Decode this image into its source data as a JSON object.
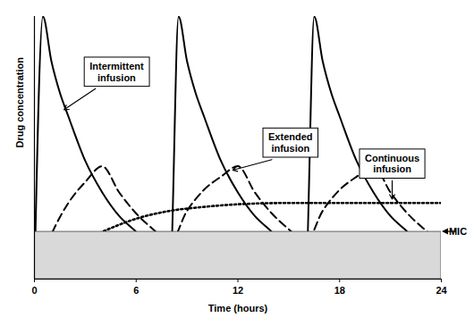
{
  "chart_data": {
    "type": "line",
    "x_label": "Time (hours)",
    "y_label": "Drug concentration",
    "xlim": [
      0,
      24
    ],
    "xticks": [
      0,
      6,
      12,
      18,
      24
    ],
    "ylim": [
      0,
      100
    ],
    "yticks": [],
    "tick_labels": "x",
    "series": [
      {
        "name": "Intermittent\ninfusion",
        "type": "line",
        "color": "#000000",
        "line_style": "solid",
        "x": [
          0,
          0.5,
          1,
          1.5,
          2,
          3,
          4,
          5,
          6,
          7,
          8,
          8.5,
          9,
          9.5,
          10,
          11,
          12,
          13,
          14,
          15,
          16,
          16.5,
          17,
          17.5,
          18,
          19,
          20,
          21,
          22,
          23,
          24
        ],
        "values": [
          0,
          100,
          83,
          71,
          62,
          45,
          33,
          24,
          18,
          11,
          3,
          100,
          83,
          71,
          62,
          45,
          33,
          24,
          18,
          11,
          3,
          100,
          83,
          71,
          62,
          45,
          33,
          24,
          18,
          11,
          3
        ]
      },
      {
        "name": "Extended\ninfusion",
        "type": "line",
        "color": "#000000",
        "line_style": "dashed",
        "x": [
          0,
          1,
          2,
          3,
          4,
          5,
          6,
          7,
          8,
          9,
          10,
          11,
          12,
          13,
          14,
          15,
          16,
          17,
          18,
          19,
          20,
          21,
          22,
          23,
          24
        ],
        "values": [
          0,
          17,
          29,
          37,
          43,
          33,
          25,
          19,
          14,
          26,
          34,
          39,
          43,
          33,
          25,
          19,
          14,
          26,
          34,
          39,
          43,
          33,
          25,
          19,
          14
        ]
      },
      {
        "name": "Continuous\ninfusion",
        "type": "line",
        "color": "#000000",
        "line_style": "dotted",
        "x": [
          0,
          1,
          2,
          3,
          4,
          6,
          8,
          10,
          12,
          15,
          18,
          21,
          24
        ],
        "values": [
          0,
          6,
          11,
          15,
          18,
          23,
          26,
          27.5,
          28.5,
          29,
          29,
          29,
          29
        ]
      },
      {
        "name": "MIC",
        "type": "area",
        "color": "#d9d9d9",
        "x": [
          0,
          24
        ],
        "values": [
          18,
          18
        ]
      }
    ]
  }
}
